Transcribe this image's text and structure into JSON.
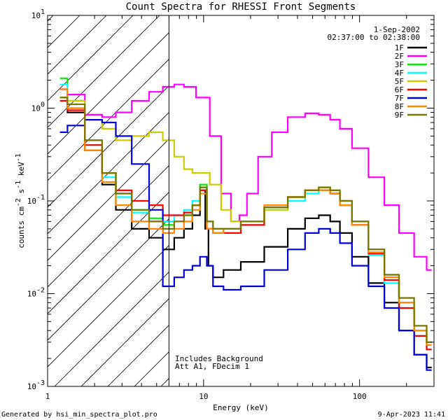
{
  "footer": {
    "generated_by": "Generated by hsi_min_spectra_plot.pro",
    "timestamp": "9-Apr-2023 11:41"
  },
  "chart_data": {
    "type": "line",
    "title": "Count Spectra for RHESSI Front Segments",
    "xlabel": "Energy (keV)",
    "ylabel_parts": {
      "base": "counts cm",
      "e1": "-2",
      "s": " s",
      "e2": "-1",
      "k": " keV",
      "e3": "-1"
    },
    "xscale": "log",
    "yscale": "log",
    "xlim": [
      1,
      300
    ],
    "ylim": [
      0.001,
      10
    ],
    "x_ticks": [
      {
        "value": 1,
        "label": "1"
      },
      {
        "value": 10,
        "label": "10"
      },
      {
        "value": 100,
        "label": "100"
      }
    ],
    "y_ticks": [
      {
        "value": 0.001,
        "base": "10",
        "exp": "-3"
      },
      {
        "value": 0.01,
        "base": "10",
        "exp": "-2"
      },
      {
        "value": 0.1,
        "base": "10",
        "exp": "-1"
      },
      {
        "value": 1,
        "base": "10",
        "exp": "0"
      },
      {
        "value": 10,
        "base": "10",
        "exp": "1"
      }
    ],
    "date": "1-Sep-2002",
    "time_range": "02:37:00 to 02:38:00",
    "annotations": [
      "Includes Background",
      "Att A1, FDecim 1"
    ],
    "shaded_region": {
      "x_from": 1,
      "x_to": 6,
      "pattern": "hatched"
    },
    "cutoff_line_x": 6,
    "legend_position": "top-right",
    "series": [
      {
        "name": "1F",
        "color": "#000000",
        "points": [
          [
            1.2,
            1.3
          ],
          [
            1.5,
            0.9
          ],
          [
            2,
            0.35
          ],
          [
            2.5,
            0.15
          ],
          [
            3,
            0.08
          ],
          [
            4,
            0.05
          ],
          [
            5,
            0.04
          ],
          [
            6,
            0.03
          ],
          [
            7,
            0.04
          ],
          [
            8,
            0.05
          ],
          [
            9,
            0.07
          ],
          [
            10,
            0.13
          ],
          [
            10.5,
            0.05
          ],
          [
            11,
            0.02
          ],
          [
            12,
            0.015
          ],
          [
            15,
            0.018
          ],
          [
            20,
            0.022
          ],
          [
            30,
            0.032
          ],
          [
            40,
            0.05
          ],
          [
            50,
            0.065
          ],
          [
            60,
            0.07
          ],
          [
            70,
            0.06
          ],
          [
            80,
            0.045
          ],
          [
            100,
            0.025
          ],
          [
            130,
            0.013
          ],
          [
            160,
            0.008
          ],
          [
            200,
            0.004
          ],
          [
            250,
            0.0022
          ],
          [
            290,
            0.0016
          ]
        ]
      },
      {
        "name": "2F",
        "color": "#ff00ff",
        "points": [
          [
            1.2,
            1.6
          ],
          [
            1.5,
            1.4
          ],
          [
            2,
            0.85
          ],
          [
            2.5,
            0.8
          ],
          [
            3,
            0.9
          ],
          [
            4,
            1.2
          ],
          [
            5,
            1.5
          ],
          [
            6,
            1.7
          ],
          [
            7,
            1.8
          ],
          [
            8,
            1.7
          ],
          [
            10,
            1.3
          ],
          [
            12,
            0.5
          ],
          [
            14,
            0.12
          ],
          [
            16,
            0.06
          ],
          [
            18,
            0.07
          ],
          [
            20,
            0.12
          ],
          [
            25,
            0.3
          ],
          [
            30,
            0.55
          ],
          [
            40,
            0.8
          ],
          [
            50,
            0.88
          ],
          [
            60,
            0.85
          ],
          [
            70,
            0.75
          ],
          [
            80,
            0.6
          ],
          [
            100,
            0.37
          ],
          [
            130,
            0.18
          ],
          [
            160,
            0.09
          ],
          [
            200,
            0.045
          ],
          [
            250,
            0.025
          ],
          [
            290,
            0.018
          ]
        ]
      },
      {
        "name": "3F",
        "color": "#00ee00",
        "points": [
          [
            1.2,
            2.1
          ],
          [
            1.5,
            1.2
          ],
          [
            2,
            0.45
          ],
          [
            2.5,
            0.2
          ],
          [
            3,
            0.12
          ],
          [
            4,
            0.08
          ],
          [
            5,
            0.065
          ],
          [
            6,
            0.055
          ],
          [
            7,
            0.06
          ],
          [
            8,
            0.07
          ],
          [
            9,
            0.09
          ],
          [
            10,
            0.15
          ],
          [
            11,
            0.06
          ],
          [
            12,
            0.05
          ],
          [
            15,
            0.05
          ],
          [
            20,
            0.06
          ],
          [
            30,
            0.085
          ],
          [
            40,
            0.11
          ],
          [
            50,
            0.13
          ],
          [
            60,
            0.14
          ],
          [
            70,
            0.12
          ],
          [
            80,
            0.1
          ],
          [
            100,
            0.06
          ],
          [
            130,
            0.03
          ],
          [
            160,
            0.015
          ],
          [
            200,
            0.008
          ],
          [
            250,
            0.004
          ],
          [
            290,
            0.003
          ]
        ]
      },
      {
        "name": "4F",
        "color": "#00ffff",
        "points": [
          [
            1.2,
            1.8
          ],
          [
            1.5,
            1.0
          ],
          [
            2,
            0.4
          ],
          [
            2.5,
            0.18
          ],
          [
            3,
            0.11
          ],
          [
            4,
            0.075
          ],
          [
            5,
            0.06
          ],
          [
            6,
            0.06
          ],
          [
            7,
            0.07
          ],
          [
            8,
            0.08
          ],
          [
            9,
            0.1
          ],
          [
            10,
            0.14
          ],
          [
            11,
            0.06
          ],
          [
            12,
            0.05
          ],
          [
            15,
            0.045
          ],
          [
            20,
            0.055
          ],
          [
            30,
            0.08
          ],
          [
            40,
            0.1
          ],
          [
            50,
            0.12
          ],
          [
            60,
            0.13
          ],
          [
            70,
            0.12
          ],
          [
            80,
            0.09
          ],
          [
            100,
            0.055
          ],
          [
            130,
            0.026
          ],
          [
            160,
            0.013
          ],
          [
            200,
            0.007
          ],
          [
            250,
            0.0035
          ],
          [
            290,
            0.0025
          ]
        ]
      },
      {
        "name": "5F",
        "color": "#cccc00",
        "points": [
          [
            1.2,
            1.3
          ],
          [
            1.5,
            1.2
          ],
          [
            2,
            0.75
          ],
          [
            2.5,
            0.6
          ],
          [
            3,
            0.45
          ],
          [
            4,
            0.5
          ],
          [
            5,
            0.55
          ],
          [
            6,
            0.45
          ],
          [
            7,
            0.3
          ],
          [
            8,
            0.22
          ],
          [
            9,
            0.2
          ],
          [
            10,
            0.2
          ],
          [
            12,
            0.15
          ],
          [
            14,
            0.08
          ],
          [
            16,
            0.06
          ],
          [
            20,
            0.06
          ],
          [
            30,
            0.08
          ],
          [
            40,
            0.11
          ],
          [
            50,
            0.13
          ],
          [
            60,
            0.14
          ],
          [
            70,
            0.13
          ],
          [
            80,
            0.1
          ],
          [
            100,
            0.06
          ],
          [
            130,
            0.03
          ],
          [
            160,
            0.016
          ],
          [
            200,
            0.008
          ],
          [
            250,
            0.004
          ],
          [
            290,
            0.003
          ]
        ]
      },
      {
        "name": "6F",
        "color": "#ff0000",
        "points": [
          [
            1.2,
            1.2
          ],
          [
            1.5,
            0.95
          ],
          [
            2,
            0.4
          ],
          [
            2.5,
            0.2
          ],
          [
            3,
            0.13
          ],
          [
            4,
            0.1
          ],
          [
            5,
            0.09
          ],
          [
            6,
            0.07
          ],
          [
            7,
            0.07
          ],
          [
            8,
            0.075
          ],
          [
            9,
            0.09
          ],
          [
            10,
            0.13
          ],
          [
            11,
            0.05
          ],
          [
            12,
            0.045
          ],
          [
            15,
            0.045
          ],
          [
            20,
            0.055
          ],
          [
            30,
            0.085
          ],
          [
            40,
            0.11
          ],
          [
            50,
            0.13
          ],
          [
            60,
            0.13
          ],
          [
            70,
            0.12
          ],
          [
            80,
            0.09
          ],
          [
            100,
            0.055
          ],
          [
            130,
            0.027
          ],
          [
            160,
            0.014
          ],
          [
            200,
            0.007
          ],
          [
            250,
            0.0035
          ],
          [
            290,
            0.0025
          ]
        ]
      },
      {
        "name": "7F",
        "color": "#0000dd",
        "points": [
          [
            1.2,
            0.55
          ],
          [
            1.5,
            0.65
          ],
          [
            2,
            0.75
          ],
          [
            2.5,
            0.7
          ],
          [
            3,
            0.5
          ],
          [
            4,
            0.25
          ],
          [
            5,
            0.08
          ],
          [
            6,
            0.012
          ],
          [
            7,
            0.015
          ],
          [
            8,
            0.018
          ],
          [
            9,
            0.02
          ],
          [
            10,
            0.025
          ],
          [
            11,
            0.02
          ],
          [
            12,
            0.012
          ],
          [
            15,
            0.011
          ],
          [
            20,
            0.012
          ],
          [
            30,
            0.018
          ],
          [
            40,
            0.03
          ],
          [
            50,
            0.045
          ],
          [
            60,
            0.05
          ],
          [
            70,
            0.045
          ],
          [
            80,
            0.035
          ],
          [
            100,
            0.02
          ],
          [
            130,
            0.012
          ],
          [
            160,
            0.007
          ],
          [
            200,
            0.004
          ],
          [
            250,
            0.0022
          ],
          [
            290,
            0.0015
          ]
        ]
      },
      {
        "name": "8F",
        "color": "#ff8800",
        "points": [
          [
            1.2,
            1.6
          ],
          [
            1.5,
            1.0
          ],
          [
            2,
            0.35
          ],
          [
            2.5,
            0.16
          ],
          [
            3,
            0.09
          ],
          [
            4,
            0.06
          ],
          [
            5,
            0.05
          ],
          [
            6,
            0.045
          ],
          [
            7,
            0.05
          ],
          [
            8,
            0.06
          ],
          [
            9,
            0.08
          ],
          [
            10,
            0.12
          ],
          [
            11,
            0.05
          ],
          [
            12,
            0.045
          ],
          [
            15,
            0.05
          ],
          [
            20,
            0.06
          ],
          [
            30,
            0.09
          ],
          [
            40,
            0.11
          ],
          [
            50,
            0.13
          ],
          [
            60,
            0.13
          ],
          [
            70,
            0.12
          ],
          [
            80,
            0.09
          ],
          [
            100,
            0.055
          ],
          [
            130,
            0.028
          ],
          [
            160,
            0.015
          ],
          [
            200,
            0.008
          ],
          [
            250,
            0.004
          ],
          [
            290,
            0.0028
          ]
        ]
      },
      {
        "name": "9F",
        "color": "#777700",
        "points": [
          [
            1.2,
            1.3
          ],
          [
            1.5,
            1.1
          ],
          [
            2,
            0.45
          ],
          [
            2.5,
            0.2
          ],
          [
            3,
            0.12
          ],
          [
            4,
            0.08
          ],
          [
            5,
            0.06
          ],
          [
            6,
            0.05
          ],
          [
            7,
            0.06
          ],
          [
            8,
            0.07
          ],
          [
            9,
            0.09
          ],
          [
            10,
            0.14
          ],
          [
            11,
            0.06
          ],
          [
            12,
            0.05
          ],
          [
            15,
            0.05
          ],
          [
            20,
            0.06
          ],
          [
            30,
            0.085
          ],
          [
            40,
            0.11
          ],
          [
            50,
            0.13
          ],
          [
            60,
            0.14
          ],
          [
            70,
            0.13
          ],
          [
            80,
            0.1
          ],
          [
            100,
            0.06
          ],
          [
            130,
            0.03
          ],
          [
            160,
            0.016
          ],
          [
            200,
            0.009
          ],
          [
            250,
            0.0045
          ],
          [
            290,
            0.003
          ]
        ]
      }
    ]
  }
}
